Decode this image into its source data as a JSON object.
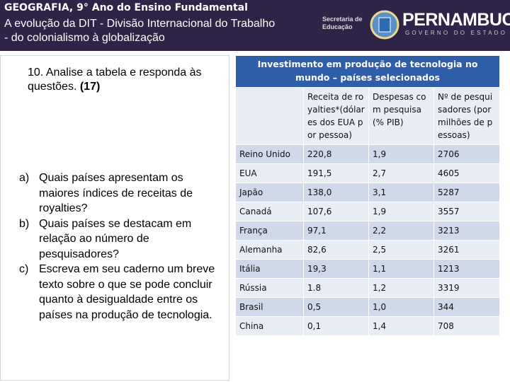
{
  "header": {
    "title": "GEOGRAFIA, 9° Ano do Ensino Fundamental",
    "subtitle_lines": [
      "A evolução da DIT - Divisão Internacional do Trabalho",
      "- do colonialismo à globalização"
    ],
    "logo": {
      "secretaria": "Secretaria de Educação",
      "state": "PERNAMBUCO",
      "government": "GOVERNO DO ESTADO"
    }
  },
  "question": {
    "number": "10.",
    "text": "Analise a tabela e responda às questões.",
    "code": "(17)",
    "items": [
      {
        "letter": "a)",
        "text": "Quais países apresentam os maiores índices de receitas de royalties?"
      },
      {
        "letter": "b)",
        "text": "Quais países se destacam em relação ao número de pesquisadores?"
      },
      {
        "letter": "c)",
        "text": "Escreva em seu caderno um breve texto sobre o que se pode concluir quanto à desigualdade entre os países na produção de tecnologia."
      }
    ]
  },
  "table": {
    "title": "Investimento em produção de tecnologia no mundo – países selecionados",
    "columns": [
      "Receita de royalties*(dólares dos EUA por pessoa)",
      "Despesas com pesquisa (% PIB)",
      "Nº de pesquisadores (por milhões de pessoas)"
    ],
    "rows": [
      [
        "Reino Unido",
        "220,8",
        "1,9",
        "2706"
      ],
      [
        "EUA",
        "191,5",
        "2,7",
        "4605"
      ],
      [
        "Japão",
        "138,0",
        "3,1",
        "5287"
      ],
      [
        "Canadá",
        "107,6",
        "1,9",
        "3557"
      ],
      [
        "França",
        "97,1",
        "2,2",
        "3213"
      ],
      [
        "Alemanha",
        "82,6",
        "2,5",
        "3261"
      ],
      [
        "Itália",
        "19,3",
        "1,1",
        "1213"
      ],
      [
        "Rússia",
        "1.8",
        "1,2",
        "3319"
      ],
      [
        "Brasil",
        "0,5",
        "1,0",
        "344"
      ],
      [
        "China",
        "0,1",
        "1,4",
        "708"
      ]
    ]
  }
}
